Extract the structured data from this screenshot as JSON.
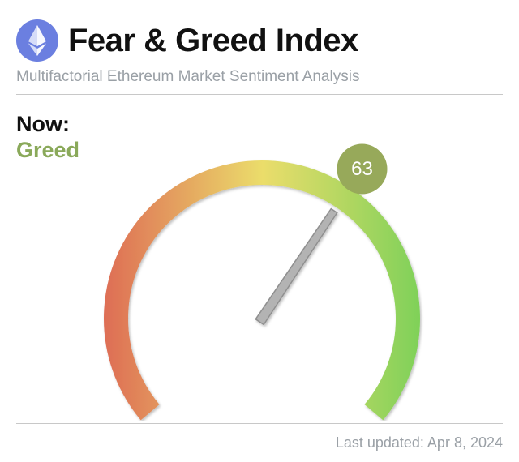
{
  "header": {
    "title": "Fear & Greed Index",
    "subtitle": "Multifactorial Ethereum Market Sentiment Analysis",
    "logo_icon": "ethereum-icon"
  },
  "now": {
    "label": "Now:",
    "sentiment": "Greed",
    "sentiment_color": "#8aa95a"
  },
  "gauge": {
    "value": "63",
    "min": 0,
    "max": 100,
    "badge_color": "#97a95a",
    "gradient": [
      "#de6e55",
      "#ebdd6b",
      "#7fd159"
    ]
  },
  "footer": {
    "last_updated": "Last updated: Apr 8, 2024"
  }
}
